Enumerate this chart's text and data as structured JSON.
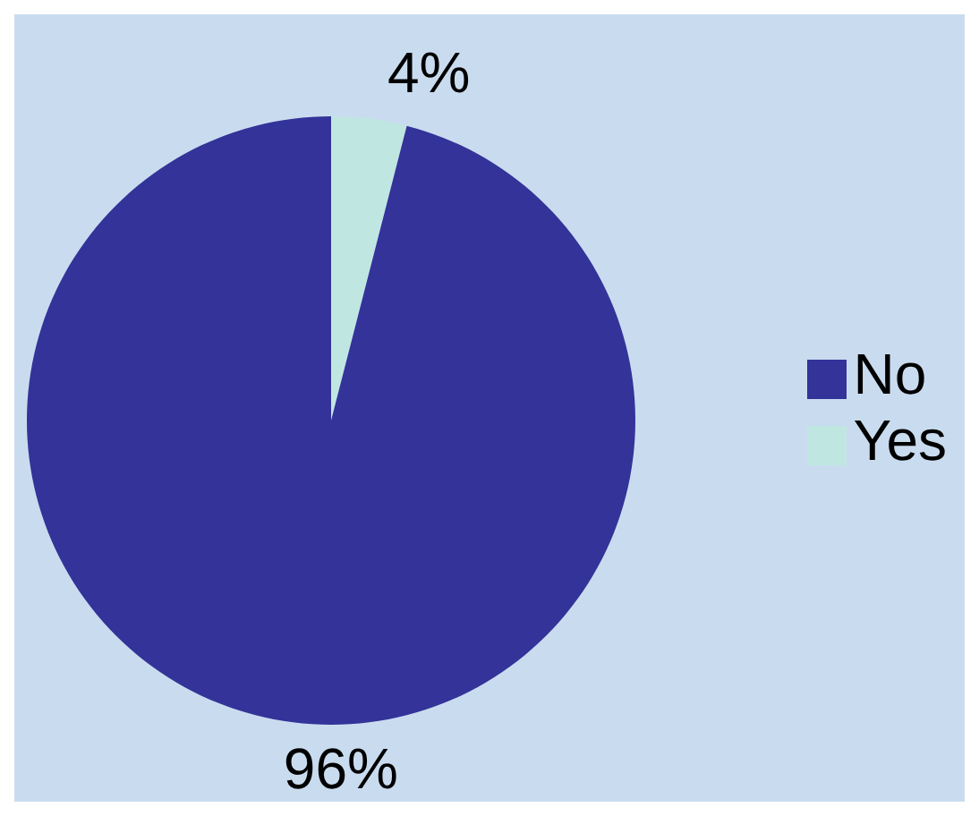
{
  "chart_data": {
    "type": "pie",
    "categories": [
      "Yes",
      "No"
    ],
    "values": [
      4,
      96
    ],
    "colors": [
      "#c0e6e2",
      "#333399"
    ],
    "value_labels": [
      "4%",
      "96%"
    ],
    "legend": "right"
  }
}
